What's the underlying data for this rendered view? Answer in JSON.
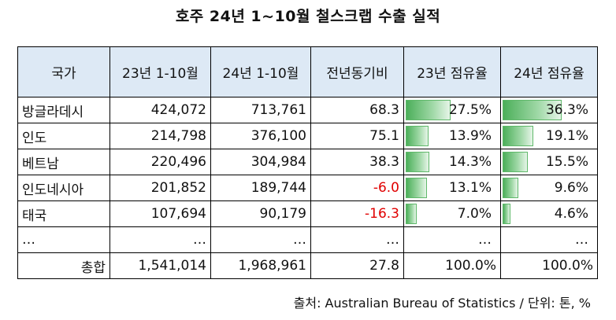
{
  "title": "호주 24년 1~10월 철스크랩 수출 실적",
  "source": "출처: Australian Bureau of Statistics / 단위: 톤, %",
  "chart_data": {
    "type": "table",
    "columns": [
      "국가",
      "23년 1-10월",
      "24년 1-10월",
      "전년동기비",
      "23년 점유율",
      "24년 점유율"
    ],
    "rows": [
      {
        "country": "방글라데시",
        "y23": "424,072",
        "y24": "713,761",
        "yoy": "68.3",
        "share23": "27.5%",
        "share24": "36.3%",
        "share23_value": 27.5,
        "share24_value": 36.3,
        "negative": false
      },
      {
        "country": "인도",
        "y23": "214,798",
        "y24": "376,100",
        "yoy": "75.1",
        "share23": "13.9%",
        "share24": "19.1%",
        "share23_value": 13.9,
        "share24_value": 19.1,
        "negative": false
      },
      {
        "country": "베트남",
        "y23": "220,496",
        "y24": "304,984",
        "yoy": "38.3",
        "share23": "14.3%",
        "share24": "15.5%",
        "share23_value": 14.3,
        "share24_value": 15.5,
        "negative": false
      },
      {
        "country": "인도네시아",
        "y23": "201,852",
        "y24": "189,744",
        "yoy": "-6.0",
        "share23": "13.1%",
        "share24": "9.6%",
        "share23_value": 13.1,
        "share24_value": 9.6,
        "negative": true
      },
      {
        "country": "태국",
        "y23": "107,694",
        "y24": "90,179",
        "yoy": "-16.3",
        "share23": "7.0%",
        "share24": "4.6%",
        "share23_value": 7.0,
        "share24_value": 4.6,
        "negative": true
      },
      {
        "country": "…",
        "y23": "…",
        "y24": "…",
        "yoy": "…",
        "share23": "…",
        "share24": "…",
        "share23_value": null,
        "share24_value": null,
        "negative": false
      }
    ],
    "total": {
      "label": "총합",
      "y23": "1,541,014",
      "y24": "1,968,961",
      "yoy": "27.8",
      "share23": "100.0%",
      "share24": "100.0%"
    },
    "bar_scale_max": 36.3,
    "colors": {
      "header_bg": "#dde9f5",
      "bar": "#4caf5a",
      "negative_text": "#e00000"
    }
  }
}
